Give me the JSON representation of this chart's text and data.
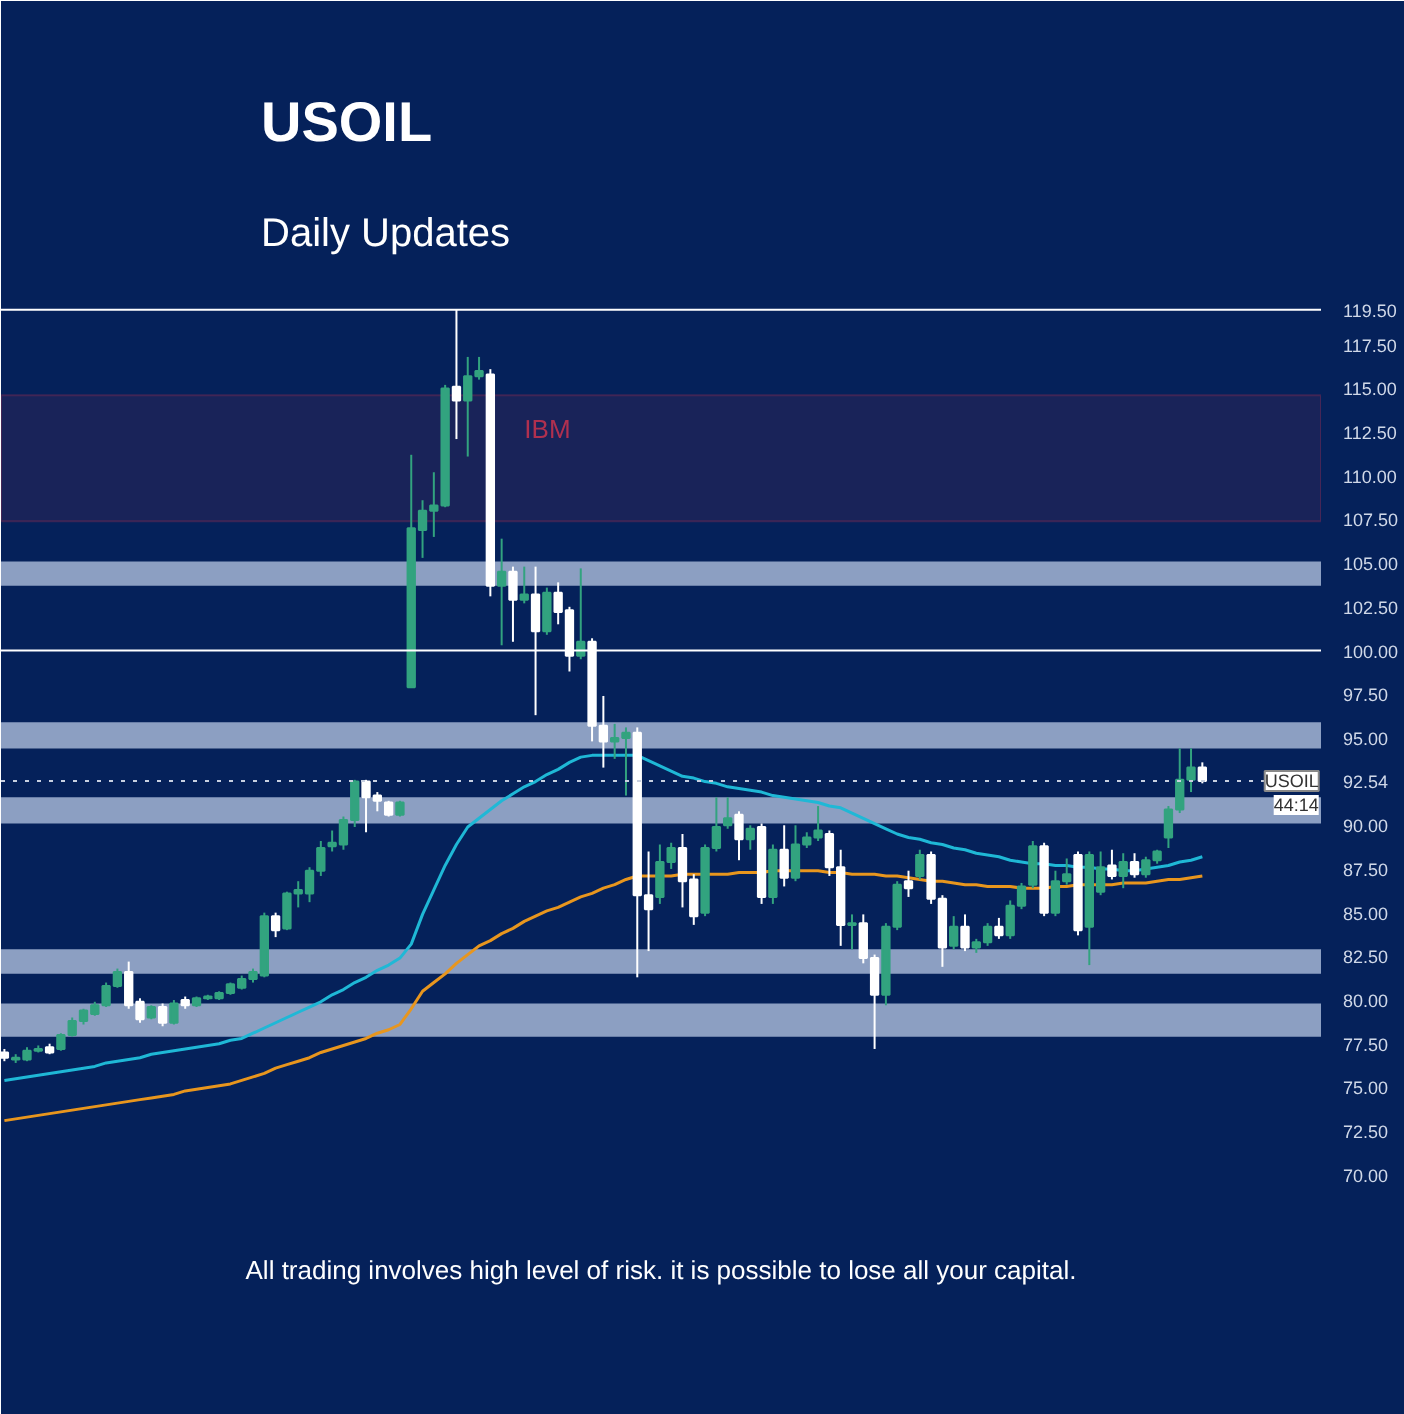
{
  "chart_data": {
    "type": "candlestick",
    "title": "USOIL",
    "subtitle": "Daily Updates",
    "categories": [
      null,
      null,
      null,
      null,
      null,
      null,
      null,
      null,
      null,
      null,
      null,
      null,
      null,
      null,
      null,
      null,
      null,
      null,
      null,
      null,
      null,
      null,
      null,
      null,
      null,
      null,
      null,
      null,
      null,
      null,
      null,
      null,
      null,
      null,
      null,
      null,
      null,
      null,
      null,
      null,
      null,
      null,
      null,
      null,
      null,
      null,
      null,
      null,
      null,
      null,
      null,
      null,
      null,
      null,
      null,
      null,
      null,
      null,
      null,
      null,
      null,
      null,
      null,
      null,
      null,
      null,
      null,
      null,
      null,
      null,
      null,
      null,
      null,
      null,
      null,
      null,
      null,
      null,
      null,
      null,
      null,
      null,
      null,
      null,
      null,
      null,
      null,
      null,
      null,
      null,
      null,
      null,
      null,
      null,
      null,
      null,
      null,
      null,
      null,
      null,
      null,
      null,
      null,
      null,
      null,
      null,
      null
    ],
    "ohlc": [
      [
        77.0,
        77.2,
        76.5,
        76.7
      ],
      [
        76.6,
        76.9,
        76.4,
        76.7
      ],
      [
        76.6,
        77.3,
        76.5,
        77.1
      ],
      [
        77.1,
        77.4,
        77.0,
        77.2
      ],
      [
        77.3,
        77.5,
        76.9,
        77.0
      ],
      [
        77.2,
        78.1,
        77.1,
        78.0
      ],
      [
        78.0,
        79.0,
        77.9,
        78.8
      ],
      [
        78.8,
        79.5,
        78.6,
        79.4
      ],
      [
        79.2,
        79.9,
        79.1,
        79.7
      ],
      [
        79.7,
        81.0,
        79.6,
        80.8
      ],
      [
        80.8,
        81.8,
        80.7,
        81.6
      ],
      [
        81.6,
        82.2,
        79.5,
        79.7
      ],
      [
        79.9,
        80.1,
        78.7,
        78.9
      ],
      [
        79.0,
        79.7,
        78.9,
        79.6
      ],
      [
        79.6,
        79.8,
        78.5,
        78.7
      ],
      [
        78.7,
        80.0,
        78.6,
        79.8
      ],
      [
        80.0,
        80.2,
        79.5,
        79.7
      ],
      [
        79.7,
        80.2,
        79.6,
        80.1
      ],
      [
        80.1,
        80.3,
        80.0,
        80.2
      ],
      [
        80.1,
        80.5,
        80.0,
        80.4
      ],
      [
        80.4,
        81.0,
        80.3,
        80.9
      ],
      [
        80.7,
        81.4,
        80.6,
        81.2
      ],
      [
        81.2,
        81.8,
        81.0,
        81.6
      ],
      [
        81.4,
        85.0,
        81.3,
        84.8
      ],
      [
        84.8,
        85.0,
        83.6,
        84.0
      ],
      [
        84.1,
        86.2,
        84.0,
        86.1
      ],
      [
        86.1,
        86.8,
        85.3,
        86.3
      ],
      [
        86.1,
        87.6,
        85.6,
        87.4
      ],
      [
        87.4,
        89.1,
        87.1,
        88.7
      ],
      [
        88.8,
        89.7,
        88.5,
        89.0
      ],
      [
        88.9,
        90.5,
        88.6,
        90.3
      ],
      [
        90.3,
        92.6,
        89.9,
        92.5
      ],
      [
        92.5,
        92.6,
        89.6,
        91.6
      ],
      [
        91.7,
        91.9,
        90.8,
        91.4
      ],
      [
        91.3,
        91.4,
        90.5,
        90.6
      ],
      [
        90.6,
        91.4,
        90.5,
        91.3
      ],
      [
        97.9,
        111.2,
        97.9,
        107.0
      ],
      [
        106.9,
        108.6,
        105.3,
        108.0
      ],
      [
        108.0,
        110.2,
        106.5,
        108.3
      ],
      [
        108.3,
        115.2,
        108.2,
        115.0
      ],
      [
        115.1,
        119.5,
        112.1,
        114.3
      ],
      [
        114.3,
        116.8,
        111.1,
        115.7
      ],
      [
        115.7,
        116.8,
        115.5,
        116.0
      ],
      [
        115.8,
        116.1,
        103.1,
        103.7
      ],
      [
        103.7,
        106.4,
        100.3,
        104.5
      ],
      [
        104.5,
        104.8,
        100.5,
        102.9
      ],
      [
        102.9,
        104.8,
        102.7,
        103.2
      ],
      [
        103.2,
        104.8,
        96.3,
        101.1
      ],
      [
        101.1,
        103.6,
        100.9,
        103.3
      ],
      [
        103.3,
        103.9,
        101.5,
        102.2
      ],
      [
        102.3,
        102.5,
        98.8,
        99.7
      ],
      [
        99.7,
        104.7,
        99.5,
        100.5
      ],
      [
        100.5,
        100.7,
        94.8,
        95.7
      ],
      [
        95.7,
        97.4,
        93.3,
        94.8
      ],
      [
        94.8,
        95.8,
        93.8,
        95.0
      ],
      [
        95.0,
        95.6,
        91.7,
        95.3
      ],
      [
        95.3,
        95.6,
        81.3,
        86.0
      ],
      [
        86.0,
        88.5,
        82.8,
        85.2
      ],
      [
        85.9,
        88.9,
        85.5,
        87.9
      ],
      [
        87.9,
        89.0,
        87.5,
        88.7
      ],
      [
        88.7,
        89.5,
        85.3,
        86.8
      ],
      [
        86.9,
        87.2,
        84.3,
        84.8
      ],
      [
        85.0,
        88.9,
        84.8,
        88.7
      ],
      [
        88.7,
        91.6,
        88.5,
        89.9
      ],
      [
        90.0,
        91.6,
        89.8,
        90.4
      ],
      [
        90.6,
        90.8,
        88.0,
        89.2
      ],
      [
        89.2,
        90.0,
        88.6,
        89.8
      ],
      [
        89.9,
        90.1,
        85.5,
        85.9
      ],
      [
        85.9,
        88.9,
        85.5,
        88.6
      ],
      [
        88.6,
        90.0,
        86.5,
        87.0
      ],
      [
        87.0,
        90.0,
        86.8,
        88.9
      ],
      [
        88.9,
        89.6,
        88.7,
        89.3
      ],
      [
        89.3,
        91.1,
        89.1,
        89.7
      ],
      [
        89.5,
        89.7,
        87.1,
        87.6
      ],
      [
        87.6,
        88.6,
        83.1,
        84.3
      ],
      [
        84.3,
        84.9,
        82.9,
        84.4
      ],
      [
        84.4,
        84.9,
        82.1,
        82.4
      ],
      [
        82.4,
        82.6,
        77.2,
        80.3
      ],
      [
        80.3,
        84.4,
        79.7,
        84.2
      ],
      [
        84.2,
        86.8,
        84.0,
        86.6
      ],
      [
        86.8,
        87.4,
        85.9,
        86.4
      ],
      [
        87.1,
        88.6,
        86.9,
        88.3
      ],
      [
        88.3,
        88.5,
        85.5,
        85.8
      ],
      [
        85.8,
        86.0,
        81.9,
        83.0
      ],
      [
        83.1,
        84.8,
        82.9,
        84.2
      ],
      [
        84.2,
        84.9,
        82.8,
        83.0
      ],
      [
        83.0,
        83.5,
        82.7,
        83.3
      ],
      [
        83.3,
        84.4,
        83.1,
        84.2
      ],
      [
        84.2,
        84.7,
        83.5,
        83.7
      ],
      [
        83.7,
        85.7,
        83.5,
        85.4
      ],
      [
        85.4,
        86.7,
        85.2,
        86.5
      ],
      [
        86.6,
        89.1,
        86.4,
        88.8
      ],
      [
        88.8,
        89.0,
        84.8,
        85.0
      ],
      [
        85.0,
        87.4,
        84.8,
        86.8
      ],
      [
        86.8,
        88.1,
        86.6,
        87.2
      ],
      [
        88.3,
        88.5,
        83.7,
        84.0
      ],
      [
        84.2,
        88.5,
        82.0,
        88.3
      ],
      [
        86.2,
        88.5,
        86.0,
        87.6
      ],
      [
        87.7,
        88.6,
        86.9,
        87.1
      ],
      [
        87.1,
        88.4,
        86.4,
        87.9
      ],
      [
        87.9,
        88.4,
        87.0,
        87.2
      ],
      [
        87.2,
        88.2,
        87.0,
        88.0
      ],
      [
        88.0,
        88.6,
        87.8,
        88.5
      ],
      [
        89.3,
        91.1,
        88.7,
        90.9
      ],
      [
        90.9,
        94.4,
        90.7,
        92.6
      ],
      [
        92.6,
        94.4,
        91.9,
        93.3
      ],
      [
        93.3,
        93.6,
        92.4,
        92.54
      ]
    ],
    "colors": [
      "#ffffff",
      "#32a37f",
      "#32a37f",
      "#32a37f",
      "#ffffff",
      "#32a37f",
      "#32a37f",
      "#32a37f",
      "#32a37f",
      "#32a37f",
      "#32a37f",
      "#ffffff",
      "#ffffff",
      "#32a37f",
      "#ffffff",
      "#32a37f",
      "#ffffff",
      "#32a37f",
      "#32a37f",
      "#32a37f",
      "#32a37f",
      "#32a37f",
      "#32a37f",
      "#32a37f",
      "#ffffff",
      "#32a37f",
      "#32a37f",
      "#32a37f",
      "#32a37f",
      "#32a37f",
      "#32a37f",
      "#32a37f",
      "#ffffff",
      "#ffffff",
      "#ffffff",
      "#32a37f",
      "#32a37f",
      "#32a37f",
      "#32a37f",
      "#32a37f",
      "#ffffff",
      "#32a37f",
      "#32a37f",
      "#ffffff",
      "#32a37f",
      "#ffffff",
      "#32a37f",
      "#ffffff",
      "#32a37f",
      "#ffffff",
      "#ffffff",
      "#32a37f",
      "#ffffff",
      "#ffffff",
      "#32a37f",
      "#32a37f",
      "#ffffff",
      "#ffffff",
      "#32a37f",
      "#32a37f",
      "#ffffff",
      "#ffffff",
      "#32a37f",
      "#32a37f",
      "#32a37f",
      "#ffffff",
      "#32a37f",
      "#ffffff",
      "#32a37f",
      "#ffffff",
      "#32a37f",
      "#32a37f",
      "#32a37f",
      "#ffffff",
      "#ffffff",
      "#32a37f",
      "#ffffff",
      "#ffffff",
      "#32a37f",
      "#32a37f",
      "#ffffff",
      "#32a37f",
      "#ffffff",
      "#ffffff",
      "#32a37f",
      "#ffffff",
      "#32a37f",
      "#32a37f",
      "#ffffff",
      "#32a37f",
      "#32a37f",
      "#32a37f",
      "#ffffff",
      "#32a37f",
      "#32a37f",
      "#ffffff",
      "#32a37f",
      "#32a37f",
      "#ffffff",
      "#32a37f",
      "#ffffff",
      "#32a37f",
      "#32a37f",
      "#32a37f",
      "#32a37f",
      "#32a37f",
      "#ffffff"
    ],
    "series": [
      {
        "type": "line",
        "color": "#1fb8d6",
        "values": [
          75.4,
          75.5,
          75.6,
          75.7,
          75.8,
          75.9,
          76.0,
          76.1,
          76.2,
          76.4,
          76.5,
          76.6,
          76.7,
          76.9,
          77.0,
          77.1,
          77.2,
          77.3,
          77.4,
          77.5,
          77.7,
          77.8,
          78.1,
          78.4,
          78.7,
          79.0,
          79.3,
          79.6,
          79.9,
          80.3,
          80.6,
          81.0,
          81.3,
          81.7,
          82.0,
          82.4,
          83.2,
          84.9,
          86.3,
          87.7,
          88.9,
          89.9,
          90.4,
          90.9,
          91.4,
          91.8,
          92.2,
          92.5,
          92.9,
          93.2,
          93.6,
          93.9,
          94.0,
          94.0,
          94.0,
          94.0,
          94.0,
          93.7,
          93.4,
          93.1,
          92.8,
          92.7,
          92.5,
          92.4,
          92.2,
          92.1,
          92.0,
          91.9,
          91.7,
          91.6,
          91.5,
          91.4,
          91.3,
          91.1,
          91.0,
          90.7,
          90.4,
          90.1,
          89.8,
          89.5,
          89.3,
          89.2,
          89.0,
          88.9,
          88.7,
          88.6,
          88.4,
          88.3,
          88.2,
          88.0,
          87.9,
          87.8,
          87.8,
          87.7,
          87.7,
          87.6,
          87.6,
          87.5,
          87.5,
          87.4,
          87.4,
          87.5,
          87.6,
          87.7,
          87.9,
          88.0,
          88.2
        ]
      },
      {
        "type": "line",
        "color": "#e8961e",
        "values": [
          73.1,
          73.2,
          73.3,
          73.4,
          73.5,
          73.6,
          73.7,
          73.8,
          73.9,
          74.0,
          74.1,
          74.2,
          74.3,
          74.4,
          74.5,
          74.6,
          74.8,
          74.9,
          75.0,
          75.1,
          75.2,
          75.4,
          75.6,
          75.8,
          76.1,
          76.3,
          76.5,
          76.7,
          77.0,
          77.2,
          77.4,
          77.6,
          77.8,
          78.1,
          78.3,
          78.6,
          79.5,
          80.5,
          81.0,
          81.5,
          82.1,
          82.6,
          83.1,
          83.4,
          83.8,
          84.1,
          84.5,
          84.8,
          85.1,
          85.3,
          85.6,
          85.9,
          86.1,
          86.4,
          86.6,
          86.9,
          87.1,
          87.1,
          87.1,
          87.1,
          87.2,
          87.2,
          87.2,
          87.2,
          87.2,
          87.3,
          87.3,
          87.3,
          87.4,
          87.4,
          87.4,
          87.4,
          87.4,
          87.3,
          87.3,
          87.2,
          87.2,
          87.2,
          87.1,
          87.1,
          87.0,
          86.9,
          86.8,
          86.8,
          86.7,
          86.6,
          86.6,
          86.5,
          86.5,
          86.5,
          86.4,
          86.4,
          86.4,
          86.5,
          86.5,
          86.6,
          86.6,
          86.6,
          86.6,
          86.7,
          86.7,
          86.7,
          86.8,
          86.9,
          86.9,
          87.0,
          87.1
        ]
      }
    ],
    "ylim": [
      68.5,
      120.0
    ],
    "yticks": [
      {
        "value": 70,
        "label": "70.00"
      },
      {
        "value": 72.5,
        "label": "72.50"
      },
      {
        "value": 75,
        "label": "75.00"
      },
      {
        "value": 77.5,
        "label": "77.50"
      },
      {
        "value": 80,
        "label": "80.00"
      },
      {
        "value": 82.5,
        "label": "82.50"
      },
      {
        "value": 85,
        "label": "85.00"
      },
      {
        "value": 87.5,
        "label": "87.50"
      },
      {
        "value": 90,
        "label": "90.00"
      },
      {
        "value": 92.54,
        "label": "92.54"
      },
      {
        "value": 95,
        "label": "95.00"
      },
      {
        "value": 97.5,
        "label": "97.50"
      },
      {
        "value": 100,
        "label": "100.00"
      },
      {
        "value": 102.5,
        "label": "102.50"
      },
      {
        "value": 105,
        "label": "105.00"
      },
      {
        "value": 107.5,
        "label": "107.50"
      },
      {
        "value": 110,
        "label": "110.00"
      },
      {
        "value": 112.5,
        "label": "112.50"
      },
      {
        "value": 115,
        "label": "115.00"
      },
      {
        "value": 117.5,
        "label": "117.50"
      },
      {
        "value": 119.5,
        "label": "119.50"
      }
    ],
    "tick_labels": "y",
    "grid": false,
    "ref_lines": [
      {
        "axis": "y",
        "value": 119.5,
        "color": "#ffffff",
        "line_style": "solid"
      },
      {
        "axis": "y",
        "value": 100,
        "color": "#ffffff",
        "line_style": "solid"
      },
      {
        "axis": "y",
        "value": 92.54,
        "label": "USOIL",
        "color": "#c8d0e0",
        "line_style": "dotted"
      }
    ],
    "bands": [
      {
        "axis": "y",
        "from": 103.7,
        "to": 105.1,
        "color": "#94a7c8"
      },
      {
        "axis": "y",
        "from": 94.4,
        "to": 95.9,
        "color": "#94a7c8"
      },
      {
        "axis": "y",
        "from": 90.1,
        "to": 91.6,
        "color": "#94a7c8"
      },
      {
        "axis": "y",
        "from": 81.5,
        "to": 82.9,
        "color": "#94a7c8"
      },
      {
        "axis": "y",
        "from": 77.9,
        "to": 79.8,
        "color": "#94a7c8"
      },
      {
        "axis": "y",
        "from": 107.4,
        "to": 114.6,
        "label": "IBM",
        "color": "#b0304f"
      }
    ],
    "annotations": [
      {
        "text": "44:14",
        "y": 92.54
      },
      "All trading involves high level of risk. it is possible to lose all your capital."
    ]
  }
}
